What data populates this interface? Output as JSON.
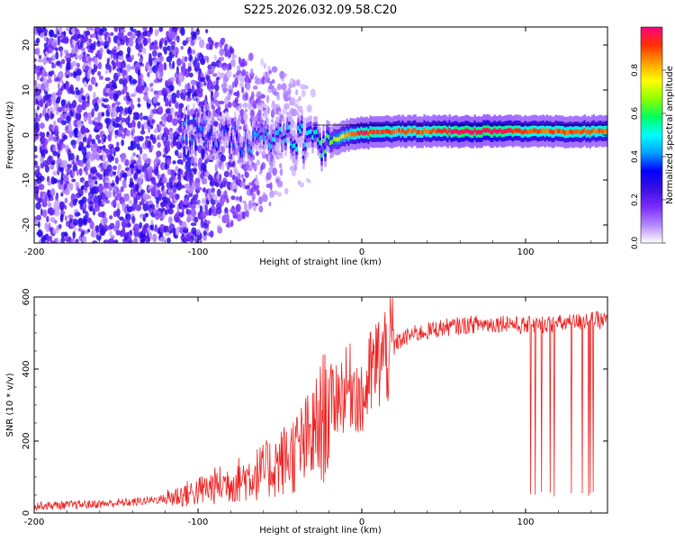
{
  "title": "S225.2026.032.09.58.C20",
  "colors": {
    "snr_line": "#ee2222",
    "zero_line": "#000000",
    "colormap": [
      "#ffffff",
      "#b388ff",
      "#7b2cff",
      "#3a10e0",
      "#0000ff",
      "#00a0ff",
      "#00ffff",
      "#00ff60",
      "#8cff00",
      "#ffff00",
      "#ffa000",
      "#ff3000",
      "#ff0080"
    ]
  },
  "chart_data": [
    {
      "type": "heatmap",
      "title": "S225.2026.032.09.58.C20",
      "xlabel": "Height of straight line (km)",
      "ylabel": "Frequency (Hz)",
      "xlim": [
        -200,
        150
      ],
      "ylim": [
        -24,
        24
      ],
      "x_ticks": [
        -200,
        -100,
        0,
        100
      ],
      "y_ticks": [
        -20,
        -10,
        0,
        10,
        20
      ],
      "colorbar": {
        "label": "Normalized spectral amplitude",
        "ticks": [
          0.0,
          0.2,
          0.4,
          0.6,
          0.8
        ],
        "range": [
          0,
          1
        ]
      },
      "ridge": {
        "description_points_x": [
          -100,
          -80,
          -60,
          -40,
          -30,
          -20,
          -10,
          0,
          20,
          40,
          60,
          80,
          100,
          120,
          150
        ],
        "frequency": [
          0.5,
          -1.0,
          -1.5,
          -0.5,
          -2.0,
          -1.5,
          0.0,
          0.5,
          0.8,
          0.8,
          0.8,
          0.9,
          0.7,
          0.8,
          0.8
        ],
        "peak_amplitude": [
          0.35,
          0.3,
          0.4,
          0.45,
          0.5,
          0.6,
          0.75,
          0.9,
          0.85,
          0.85,
          0.95,
          0.95,
          0.85,
          0.85,
          0.85
        ]
      }
    },
    {
      "type": "line",
      "xlabel": "Height of straight line (km)",
      "ylabel": "SNR (10 * v/v)",
      "xlim": [
        -200,
        150
      ],
      "ylim": [
        0,
        600
      ],
      "x_ticks": [
        -200,
        -100,
        0,
        100
      ],
      "y_ticks": [
        0,
        200,
        400,
        600
      ],
      "series": [
        {
          "x": [
            -200,
            -180,
            -160,
            -140,
            -120,
            -100,
            -90,
            -80,
            -70,
            -60,
            -50,
            -40,
            -35,
            -30,
            -25,
            -20,
            -15,
            -10,
            -5,
            0,
            5,
            10,
            20,
            30,
            40,
            50,
            60,
            70,
            80,
            90,
            95,
            100,
            110,
            120,
            130,
            140,
            150
          ],
          "y": [
            20,
            22,
            25,
            30,
            40,
            60,
            75,
            85,
            100,
            115,
            140,
            170,
            190,
            210,
            250,
            300,
            330,
            340,
            360,
            300,
            380,
            420,
            470,
            495,
            505,
            515,
            520,
            525,
            525,
            530,
            520,
            520,
            525,
            525,
            530,
            535,
            535
          ]
        }
      ],
      "dropouts": {
        "x_range": [
          103,
          142
        ],
        "low_value": 45
      }
    }
  ]
}
